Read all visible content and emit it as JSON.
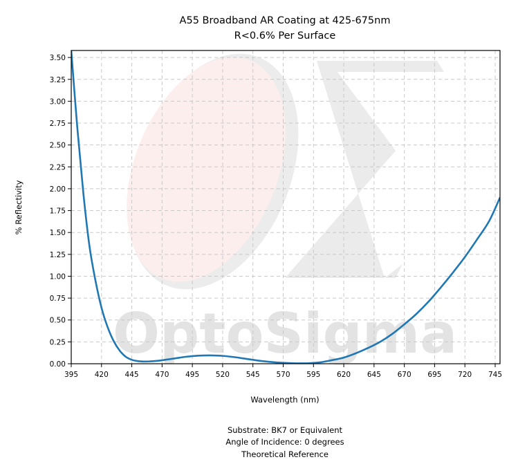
{
  "chart_data": {
    "type": "line",
    "title": "A55 Broadband AR Coating at 425-675nm",
    "subtitle": "R<0.6% Per Surface",
    "xlabel": "Wavelength (nm)",
    "ylabel": "% Reflectivity",
    "xlim": [
      395,
      749
    ],
    "ylim": [
      0,
      3.58
    ],
    "xticks": [
      "395",
      "420",
      "445",
      "470",
      "495",
      "520",
      "545",
      "570",
      "595",
      "620",
      "645",
      "670",
      "695",
      "720",
      "745"
    ],
    "yticks": [
      "0.00",
      "0.25",
      "0.50",
      "0.75",
      "1.00",
      "1.25",
      "1.50",
      "1.75",
      "2.00",
      "2.25",
      "2.50",
      "2.75",
      "3.00",
      "3.25",
      "3.50"
    ],
    "grid": true,
    "series": [
      {
        "color": "#1f77b4",
        "x": [
          395,
          400,
          405,
          410,
          415,
          420,
          425,
          430,
          435,
          440,
          445,
          450,
          455,
          460,
          465,
          470,
          480,
          490,
          500,
          510,
          520,
          530,
          540,
          550,
          560,
          570,
          580,
          590,
          600,
          610,
          620,
          630,
          640,
          650,
          660,
          670,
          680,
          690,
          700,
          710,
          720,
          730,
          740,
          749
        ],
        "y": [
          3.58,
          2.7,
          1.95,
          1.35,
          0.95,
          0.64,
          0.42,
          0.26,
          0.15,
          0.08,
          0.045,
          0.03,
          0.025,
          0.027,
          0.032,
          0.04,
          0.06,
          0.08,
          0.092,
          0.095,
          0.09,
          0.075,
          0.055,
          0.035,
          0.02,
          0.01,
          0.005,
          0.005,
          0.015,
          0.04,
          0.07,
          0.12,
          0.18,
          0.25,
          0.34,
          0.45,
          0.57,
          0.71,
          0.87,
          1.04,
          1.22,
          1.42,
          1.63,
          1.9
        ]
      }
    ]
  },
  "notes": [
    "Substrate: BK7 or Equivalent",
    "Angle of Incidence: 0 degrees",
    "Theoretical Reference"
  ],
  "watermark": {
    "text": "OptoSigma"
  }
}
